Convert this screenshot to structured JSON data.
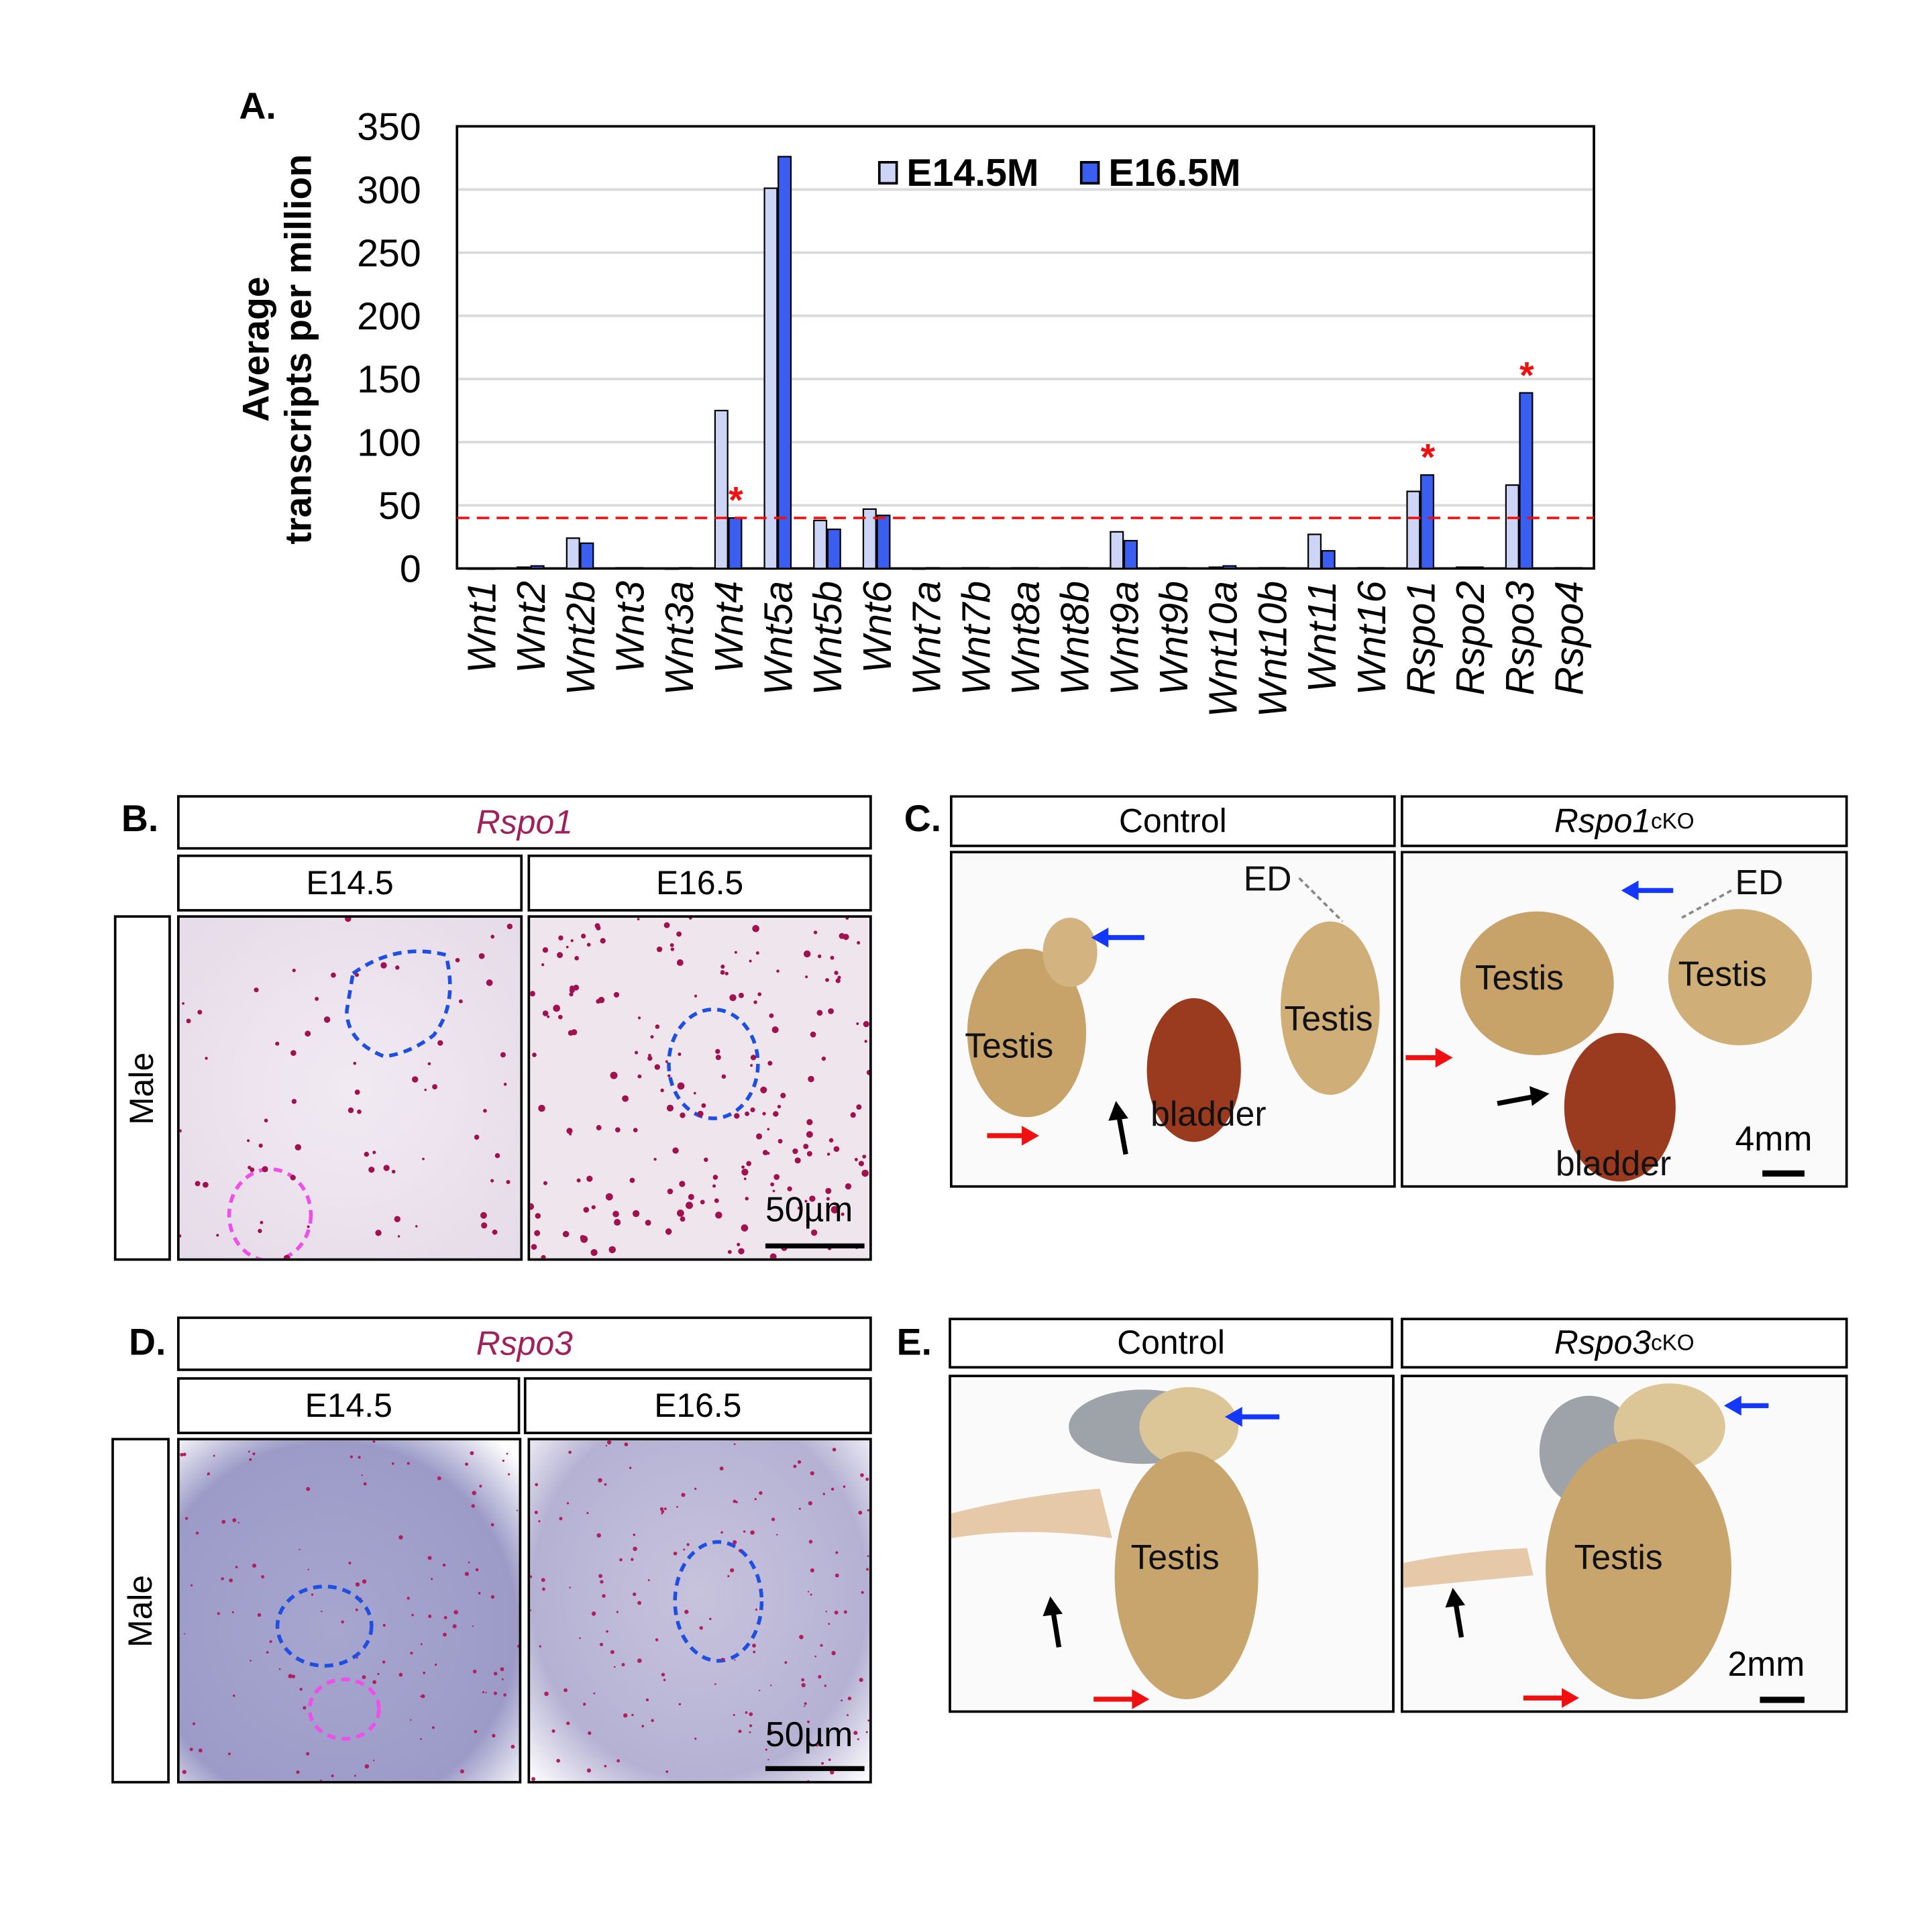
{
  "chart_data": {
    "type": "bar",
    "panel_label": "A.",
    "ylabel_line1": "Average",
    "ylabel_line2": "transcripts per million",
    "ylim": [
      0,
      350
    ],
    "yticks": [
      "0",
      "50",
      "100",
      "150",
      "200",
      "250",
      "300",
      "350"
    ],
    "grid": true,
    "legend_position": "top-center",
    "threshold": 40,
    "categories": [
      "Wnt1",
      "Wnt2",
      "Wnt2b",
      "Wnt3",
      "Wnt3a",
      "Wnt4",
      "Wnt5a",
      "Wnt5b",
      "Wnt6",
      "Wnt7a",
      "Wnt7b",
      "Wnt8a",
      "Wnt8b",
      "Wnt9a",
      "Wnt9b",
      "Wnt10a",
      "Wnt10b",
      "Wnt11",
      "Wnt16",
      "Rspo1",
      "Rspo2",
      "Rspo3",
      "Rspo4"
    ],
    "series": [
      {
        "name": "E14.5M",
        "color": "#cdd5f7",
        "values": [
          0,
          1,
          24,
          0.5,
          0,
          125,
          301,
          38,
          47,
          0,
          0.5,
          0.5,
          0.5,
          29,
          0.5,
          1,
          0.5,
          27,
          0.5,
          61,
          1,
          66,
          0.5
        ]
      },
      {
        "name": "E16.5M",
        "color": "#3a5ef0",
        "values": [
          0,
          2,
          20,
          0.5,
          0.5,
          40,
          326,
          31,
          42,
          0.5,
          0.5,
          0.5,
          0.5,
          22,
          0.5,
          2,
          0.5,
          14,
          0.5,
          74,
          1,
          139,
          0.5
        ]
      }
    ],
    "significant": [
      "Wnt4",
      "Rspo1",
      "Rspo3"
    ],
    "significance_mark": "*"
  },
  "panelB": {
    "label": "B.",
    "gene": "Rspo1",
    "stages": [
      "E14.5",
      "E16.5"
    ],
    "row": "Male",
    "scale": "50µm"
  },
  "panelC": {
    "label": "C.",
    "cols": [
      "Control",
      "Rspo1"
    ],
    "sup": "cKO",
    "left": {
      "testis": "Testis",
      "testis2": "Testis",
      "ed": "ED",
      "bladder": "bladder"
    },
    "right": {
      "testis": "Testis",
      "testis2": "Testis",
      "ed": "ED",
      "bladder": "bladder"
    },
    "scale": "4mm"
  },
  "panelD": {
    "label": "D.",
    "gene": "Rspo3",
    "stages": [
      "E14.5",
      "E16.5"
    ],
    "row": "Male",
    "scale": "50µm"
  },
  "panelE": {
    "label": "E.",
    "cols": [
      "Control",
      "Rspo3"
    ],
    "sup": "cKO",
    "left": {
      "testis": "Testis"
    },
    "right": {
      "testis": "Testis"
    },
    "scale": "2mm"
  }
}
